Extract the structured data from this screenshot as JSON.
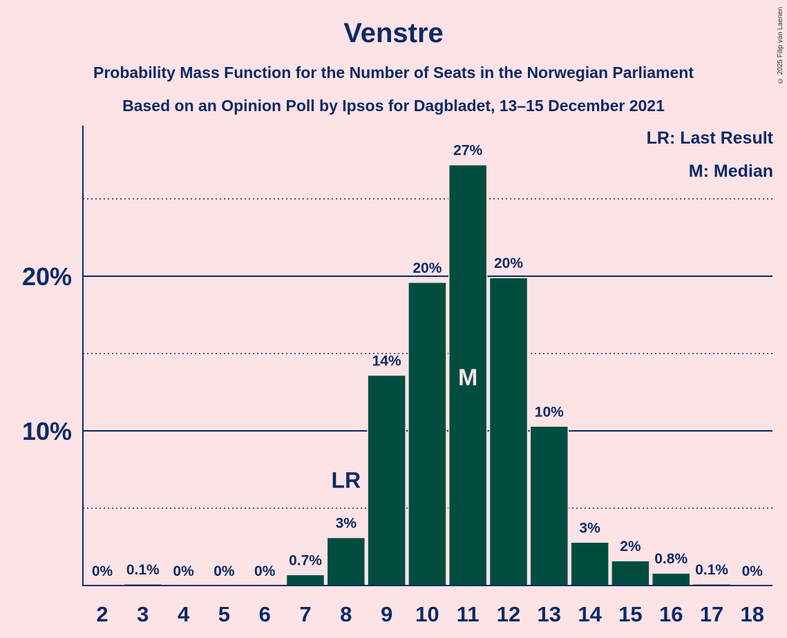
{
  "header": {
    "title": "Venstre",
    "subtitle1": "Probability Mass Function for the Number of Seats in the Norwegian Parliament",
    "subtitle2": "Based on an Opinion Poll by Ipsos for Dagbladet, 13–15 December 2021",
    "copyright": "© 2025 Filip van Laenen"
  },
  "legend": {
    "lr": "LR: Last Result",
    "m": "M: Median"
  },
  "colors": {
    "background": "#fde3e6",
    "bar": "#004d40",
    "text": "#0b2a66"
  },
  "chart_data": {
    "type": "bar",
    "categories": [
      "2",
      "3",
      "4",
      "5",
      "6",
      "7",
      "8",
      "9",
      "10",
      "11",
      "12",
      "13",
      "14",
      "15",
      "16",
      "17",
      "18"
    ],
    "values": [
      0,
      0.1,
      0,
      0,
      0,
      0.7,
      3.1,
      13.6,
      19.6,
      27.2,
      19.9,
      10.3,
      2.8,
      1.6,
      0.8,
      0.1,
      0
    ],
    "labels": [
      "0%",
      "0.1%",
      "0%",
      "0%",
      "0%",
      "0.7%",
      "3%",
      "14%",
      "20%",
      "27%",
      "20%",
      "10%",
      "3%",
      "2%",
      "0.8%",
      "0.1%",
      "0%"
    ],
    "ylim": [
      0,
      29.6
    ],
    "yticks": [
      {
        "value": 10,
        "label": "10%"
      },
      {
        "value": 20,
        "label": "20%"
      }
    ],
    "minor_gridlines": [
      5,
      15,
      25
    ],
    "last_result": {
      "category": "8",
      "label": "LR"
    },
    "median": {
      "category": "11",
      "label": "M"
    }
  }
}
